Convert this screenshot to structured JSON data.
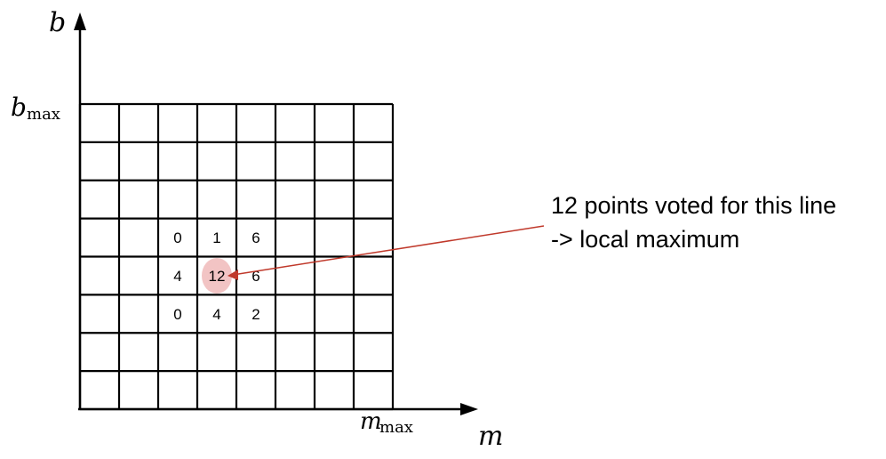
{
  "diagram": {
    "y_axis_symbol": "b",
    "y_max_symbol": "b",
    "y_max_subscript": "max",
    "x_axis_symbol": "m",
    "x_max_symbol": "m",
    "x_max_subscript": "max",
    "grid": {
      "columns": 8,
      "rows": 8
    },
    "cells": [
      {
        "col": 2,
        "row": 3,
        "value": "0"
      },
      {
        "col": 3,
        "row": 3,
        "value": "1"
      },
      {
        "col": 4,
        "row": 3,
        "value": "6"
      },
      {
        "col": 2,
        "row": 4,
        "value": "4"
      },
      {
        "col": 3,
        "row": 4,
        "value": "12",
        "highlight": true
      },
      {
        "col": 4,
        "row": 4,
        "value": "6"
      },
      {
        "col": 2,
        "row": 5,
        "value": "0"
      },
      {
        "col": 3,
        "row": 5,
        "value": "4"
      },
      {
        "col": 4,
        "row": 5,
        "value": "2"
      }
    ],
    "annotation": {
      "line1": "12 points voted for this line",
      "line2": "-> local maximum"
    },
    "colors": {
      "highlight": "#f2c4c4",
      "arrow": "#c0392b",
      "lines": "#000000"
    }
  }
}
